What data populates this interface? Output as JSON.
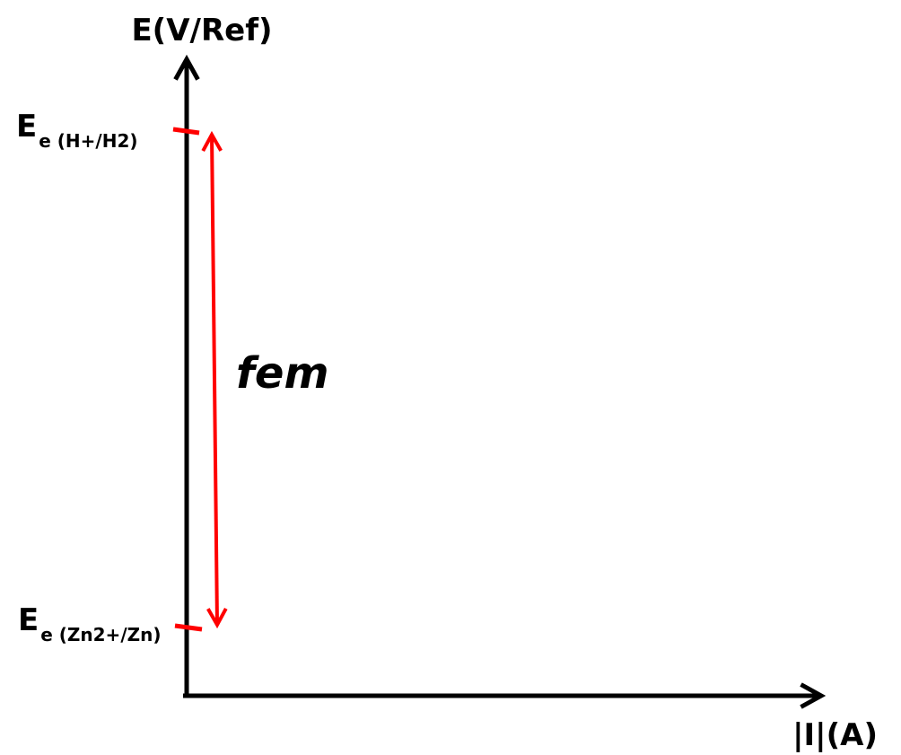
{
  "axes": {
    "y_label": "E(V/Ref)",
    "x_label": "|I|(A)"
  },
  "levels": [
    {
      "symbol": "E",
      "subscript": "e (H+/H2)"
    },
    {
      "symbol": "E",
      "subscript": "e (Zn2+/Zn)"
    }
  ],
  "annotation": "fem"
}
